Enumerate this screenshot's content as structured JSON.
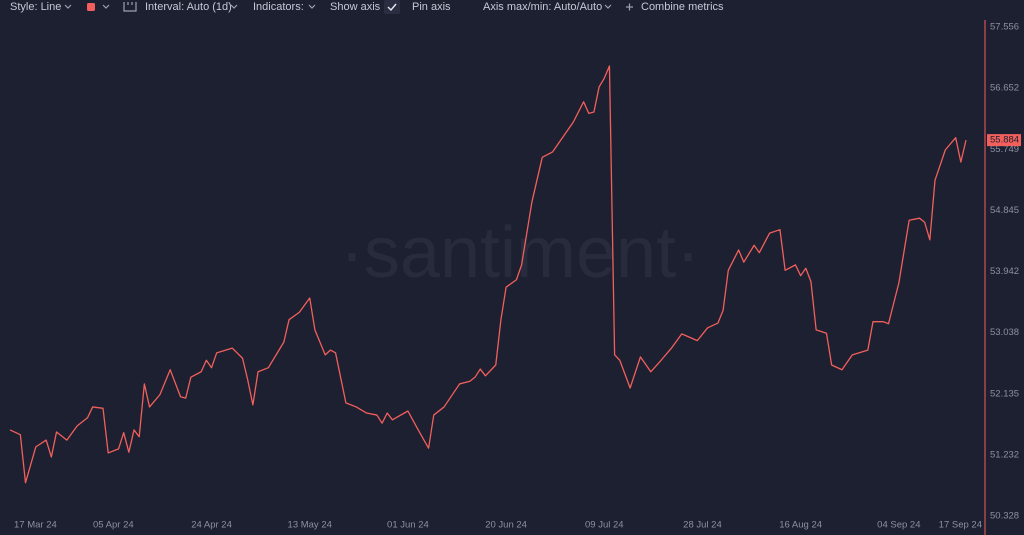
{
  "toolbar": {
    "style": "Style: Line",
    "interval": "Interval: Auto (1d)",
    "indicators": "Indicators:",
    "show_axis": "Show axis",
    "pin_axis": "Pin axis",
    "axis_minmax": "Axis max/min: Auto/Auto",
    "combine": "Combine metrics"
  },
  "chart_data": {
    "type": "line",
    "watermark": "·santiment·",
    "x": [
      "2024-03-16",
      "2024-03-18",
      "2024-03-19",
      "2024-03-21",
      "2024-03-23",
      "2024-03-24",
      "2024-03-25",
      "2024-03-27",
      "2024-03-29",
      "2024-03-31",
      "2024-04-01",
      "2024-04-03",
      "2024-04-04",
      "2024-04-06",
      "2024-04-07",
      "2024-04-08",
      "2024-04-09",
      "2024-04-10",
      "2024-04-11",
      "2024-04-12",
      "2024-04-14",
      "2024-04-16",
      "2024-04-18",
      "2024-04-19",
      "2024-04-20",
      "2024-04-22",
      "2024-04-23",
      "2024-04-24",
      "2024-04-25",
      "2024-04-28",
      "2024-04-30",
      "2024-05-01",
      "2024-05-02",
      "2024-05-03",
      "2024-05-05",
      "2024-05-08",
      "2024-05-09",
      "2024-05-11",
      "2024-05-13",
      "2024-05-14",
      "2024-05-16",
      "2024-05-17",
      "2024-05-18",
      "2024-05-20",
      "2024-05-22",
      "2024-05-24",
      "2024-05-26",
      "2024-05-27",
      "2024-05-28",
      "2024-05-29",
      "2024-06-01",
      "2024-06-03",
      "2024-06-05",
      "2024-06-06",
      "2024-06-08",
      "2024-06-11",
      "2024-06-13",
      "2024-06-14",
      "2024-06-15",
      "2024-06-16",
      "2024-06-18",
      "2024-06-19",
      "2024-06-20",
      "2024-06-22",
      "2024-06-23",
      "2024-06-25",
      "2024-06-27",
      "2024-06-29",
      "2024-07-01",
      "2024-07-03",
      "2024-07-05",
      "2024-07-06",
      "2024-07-07",
      "2024-07-08",
      "2024-07-09",
      "2024-07-10",
      "2024-07-11",
      "2024-07-12",
      "2024-07-14",
      "2024-07-16",
      "2024-07-18",
      "2024-07-20",
      "2024-07-22",
      "2024-07-24",
      "2024-07-27",
      "2024-07-29",
      "2024-07-31",
      "2024-08-01",
      "2024-08-02",
      "2024-08-04",
      "2024-08-05",
      "2024-08-07",
      "2024-08-08",
      "2024-08-10",
      "2024-08-12",
      "2024-08-13",
      "2024-08-15",
      "2024-08-16",
      "2024-08-17",
      "2024-08-18",
      "2024-08-19",
      "2024-08-21",
      "2024-08-22",
      "2024-08-24",
      "2024-08-26",
      "2024-08-29",
      "2024-08-30",
      "2024-09-01",
      "2024-09-02",
      "2024-09-04",
      "2024-09-06",
      "2024-09-08",
      "2024-09-09",
      "2024-09-10",
      "2024-09-11",
      "2024-09-13",
      "2024-09-15",
      "2024-09-16",
      "2024-09-17"
    ],
    "series": [
      {
        "color": "#f25f5c",
        "values": [
          51.6,
          51.53,
          50.82,
          51.35,
          51.45,
          51.2,
          51.57,
          51.45,
          51.66,
          51.78,
          51.94,
          51.92,
          51.26,
          51.32,
          51.56,
          51.27,
          51.6,
          51.5,
          52.28,
          51.94,
          52.12,
          52.49,
          52.09,
          52.07,
          52.38,
          52.46,
          52.63,
          52.52,
          52.74,
          52.81,
          52.66,
          52.34,
          51.97,
          52.46,
          52.52,
          52.9,
          53.23,
          53.34,
          53.55,
          53.08,
          52.71,
          52.78,
          52.74,
          52.0,
          51.94,
          51.85,
          51.82,
          51.7,
          51.85,
          51.75,
          51.88,
          51.6,
          51.33,
          51.82,
          51.94,
          52.28,
          52.32,
          52.38,
          52.5,
          52.4,
          52.56,
          53.23,
          53.71,
          53.82,
          54.04,
          54.97,
          55.63,
          55.71,
          55.93,
          56.15,
          56.45,
          56.28,
          56.3,
          56.67,
          56.8,
          56.98,
          52.71,
          52.63,
          52.22,
          52.68,
          52.46,
          52.63,
          52.81,
          53.02,
          52.92,
          53.11,
          53.18,
          53.37,
          53.96,
          54.26,
          54.08,
          54.33,
          54.22,
          54.51,
          54.56,
          53.96,
          54.04,
          53.88,
          53.99,
          53.79,
          53.08,
          53.03,
          52.56,
          52.49,
          52.71,
          52.78,
          53.2,
          53.2,
          53.17,
          53.77,
          54.7,
          54.73,
          54.67,
          54.41,
          55.29,
          55.74,
          55.92,
          55.56,
          55.884
        ]
      }
    ],
    "xlim": [
      "2024-03-16",
      "2024-09-17"
    ],
    "xticks": [
      {
        "value": "2024-03-17",
        "label": "17 Mar 24"
      },
      {
        "value": "2024-04-05",
        "label": "05 Apr 24"
      },
      {
        "value": "2024-04-24",
        "label": "24 Apr 24"
      },
      {
        "value": "2024-05-13",
        "label": "13 May 24"
      },
      {
        "value": "2024-06-01",
        "label": "01 Jun 24"
      },
      {
        "value": "2024-06-20",
        "label": "20 Jun 24"
      },
      {
        "value": "2024-07-09",
        "label": "09 Jul 24"
      },
      {
        "value": "2024-07-28",
        "label": "28 Jul 24"
      },
      {
        "value": "2024-08-16",
        "label": "16 Aug 24"
      },
      {
        "value": "2024-09-04",
        "label": "04 Sep 24"
      },
      {
        "value": "2024-09-17",
        "label": "17 Sep 24"
      }
    ],
    "ylim": [
      50.328,
      57.556
    ],
    "yticks": [
      50.328,
      51.232,
      52.135,
      53.038,
      53.942,
      54.845,
      55.749,
      56.652,
      57.556
    ],
    "grid": false
  }
}
